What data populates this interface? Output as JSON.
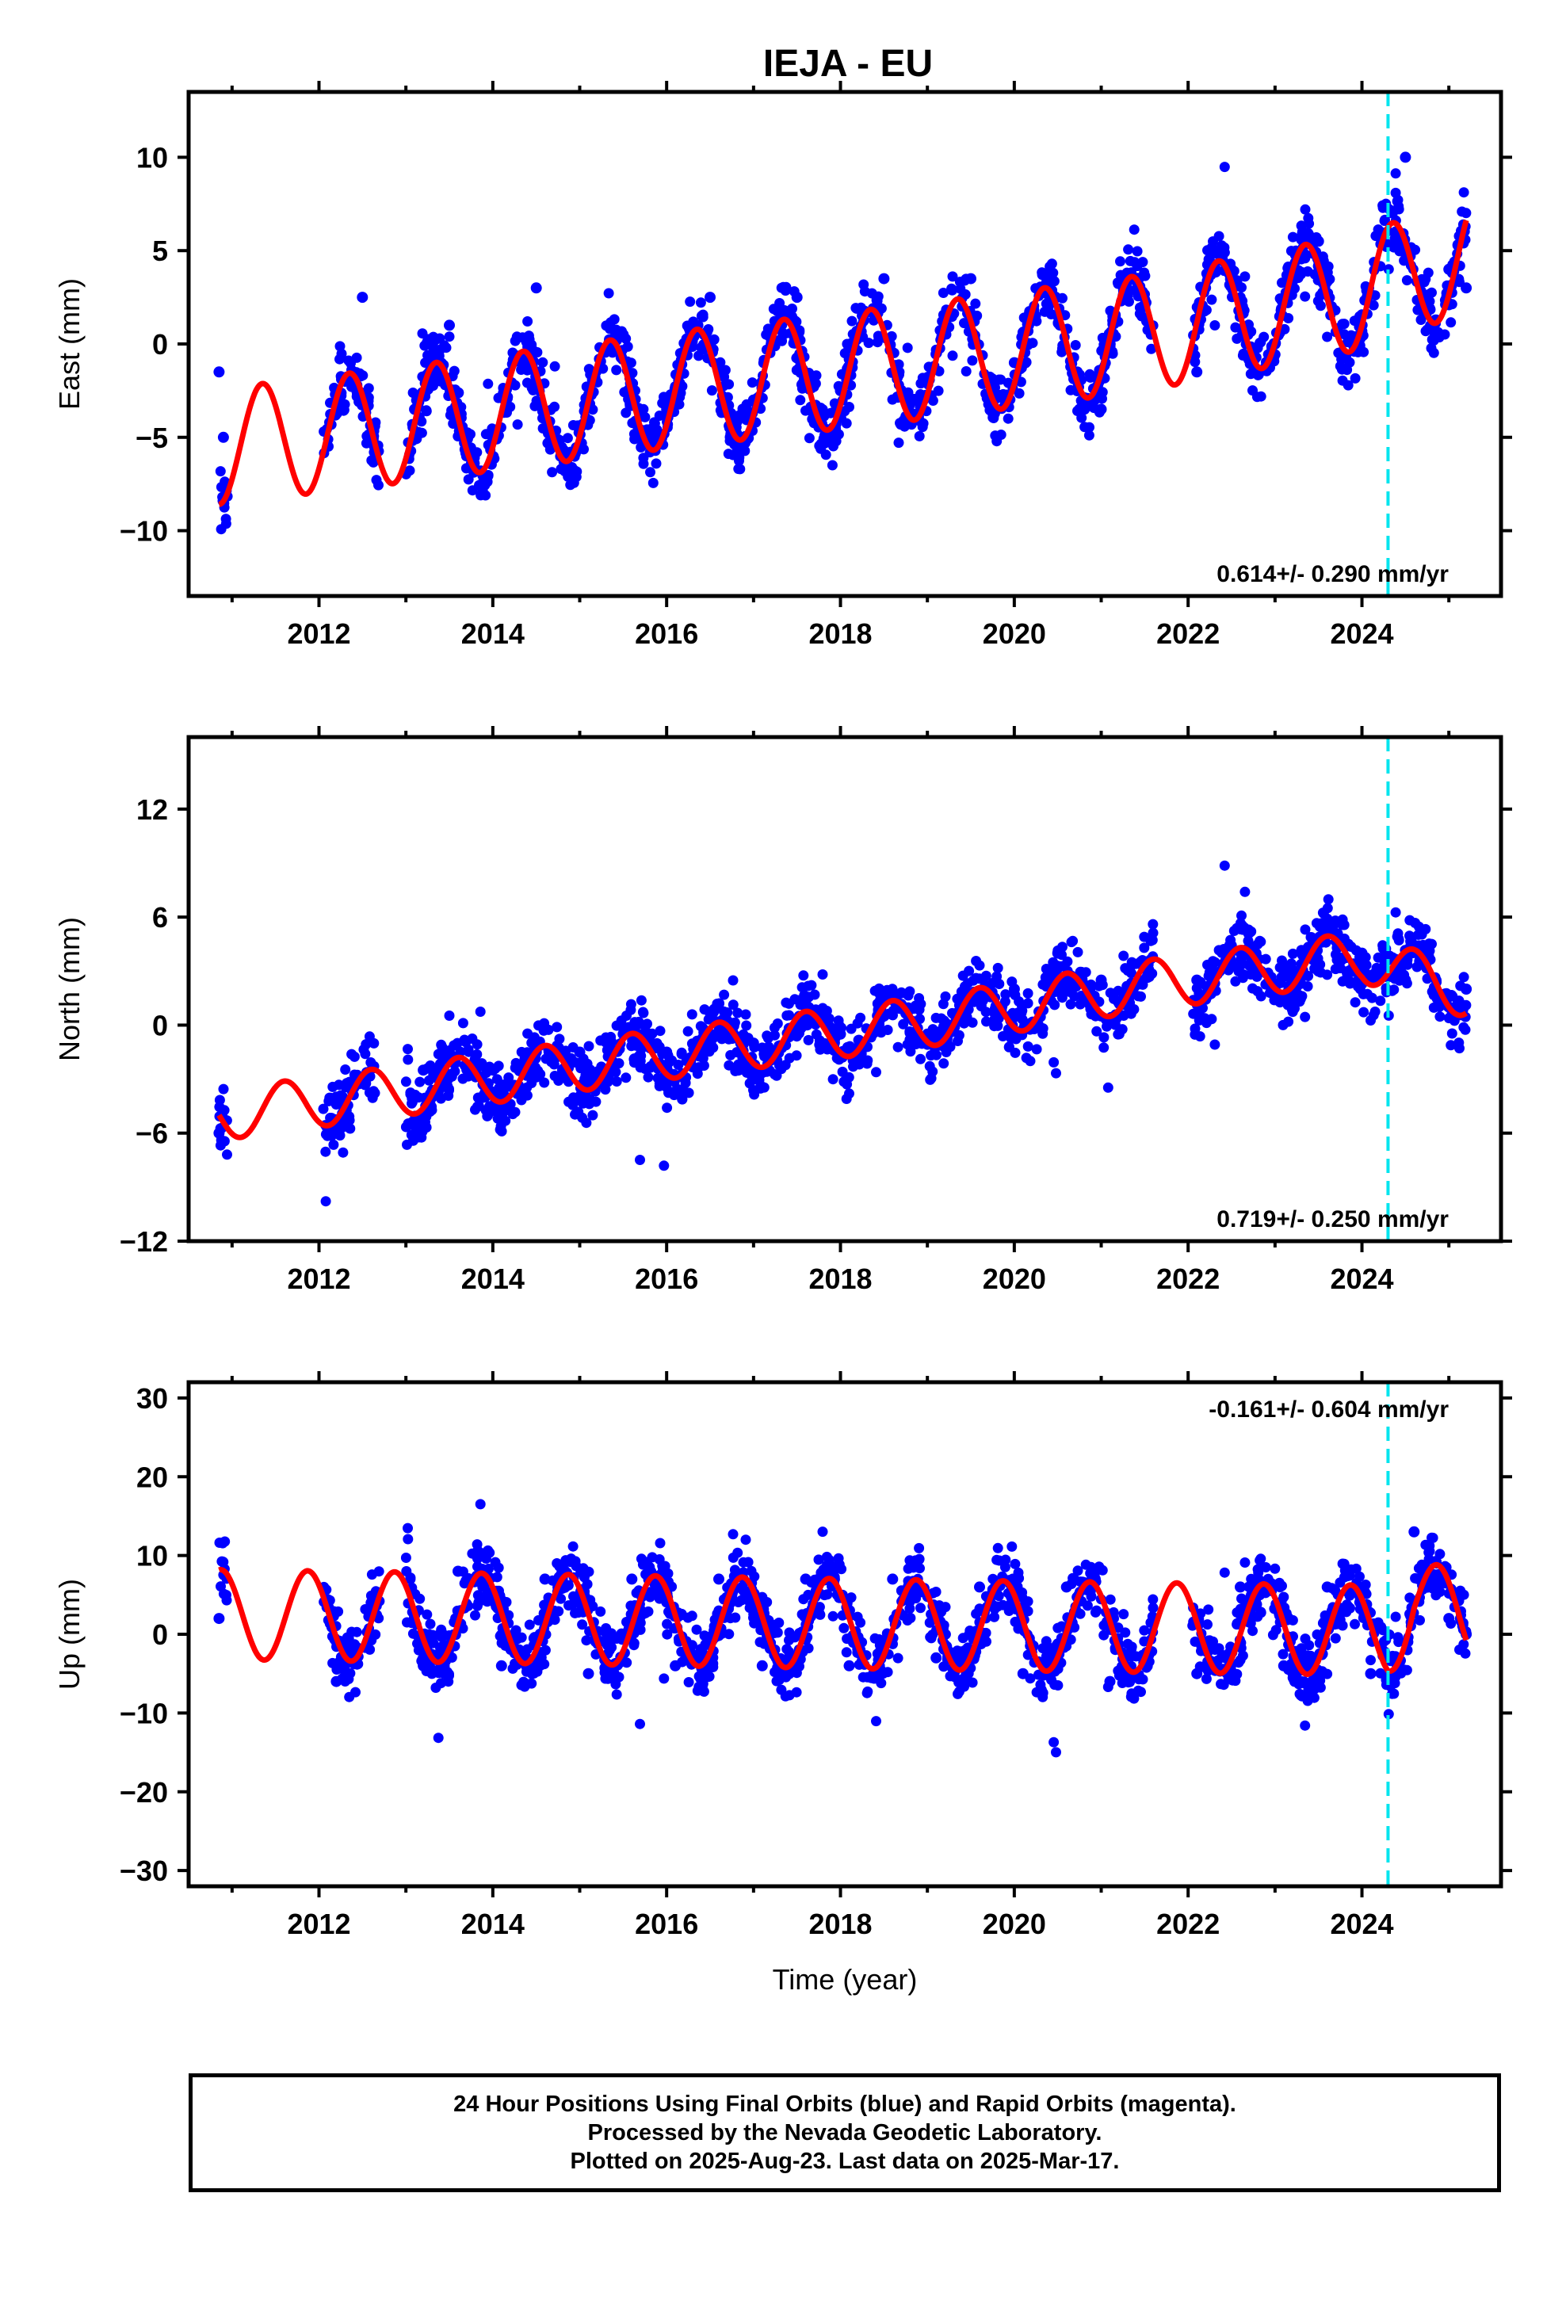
{
  "title": "IEJA - EU",
  "colors": {
    "final_orbits": "#0000ff",
    "model": "#ff0000",
    "event_line": "#00e5ee",
    "axes": "#000000"
  },
  "chart_data": [
    {
      "type": "scatter",
      "panel": "east",
      "ylabel": "East (mm)",
      "xlim": [
        2010.5,
        2025.6
      ],
      "ylim": [
        -13.5,
        13.5
      ],
      "yticks": [
        -10,
        -5,
        0,
        5,
        10
      ],
      "ytick_labels": [
        "−10",
        "−5",
        "0",
        "5",
        "10"
      ],
      "xticks": [
        2012,
        2014,
        2016,
        2018,
        2020,
        2022,
        2024
      ],
      "xtick_labels": [
        "2012",
        "2014",
        "2016",
        "2018",
        "2020",
        "2022",
        "2024"
      ],
      "rate_label": "0.614+/- 0.290 mm/yr",
      "rate_label_position": "bottom-right",
      "event_line_x": 2024.3,
      "model": {
        "trend": [
          [
            2010.85,
            -5.5
          ],
          [
            2013.0,
            -4.3
          ],
          [
            2016.0,
            -2.5
          ],
          [
            2019.0,
            -0.9
          ],
          [
            2021.5,
            0.6
          ],
          [
            2024.0,
            2.8
          ],
          [
            2025.2,
            4.8
          ]
        ],
        "annual_amplitude": 3.1,
        "annual_phase": 0.1
      },
      "series": [
        {
          "name": "Final Orbits",
          "color": "#0000ff",
          "x": [
            2010.85,
            2010.9,
            2012.3,
            2012.5,
            2013.1,
            2013.5,
            2014.0,
            2014.5,
            2015.0,
            2015.5,
            2016.0,
            2016.5,
            2017.0,
            2017.5,
            2018.0,
            2018.5,
            2019.0,
            2019.5,
            2020.0,
            2020.5,
            2021.0,
            2021.5,
            2022.1,
            2022.5,
            2023.0,
            2023.5,
            2024.0,
            2024.5,
            2025.0,
            2025.2
          ],
          "y": [
            -1.5,
            -5.0,
            -2.0,
            2.5,
            -3.5,
            1.0,
            -5.0,
            3.0,
            -4.5,
            0.5,
            -3.5,
            2.5,
            -3.0,
            2.5,
            -2.5,
            3.5,
            -2.0,
            3.5,
            -1.0,
            1.5,
            -3.5,
            2.0,
            -1.5,
            4.0,
            0.0,
            5.5,
            1.0,
            10.0,
            4.0,
            3.0
          ]
        }
      ]
    },
    {
      "type": "scatter",
      "panel": "north",
      "ylabel": "North (mm)",
      "xlim": [
        2010.5,
        2025.6
      ],
      "ylim": [
        -12,
        16
      ],
      "yticks": [
        -12,
        -6,
        0,
        6,
        12
      ],
      "ytick_labels": [
        "−12",
        "−6",
        "0",
        "6",
        "12"
      ],
      "xticks": [
        2012,
        2014,
        2016,
        2018,
        2020,
        2022,
        2024
      ],
      "xtick_labels": [
        "2012",
        "2014",
        "2016",
        "2018",
        "2020",
        "2022",
        "2024"
      ],
      "rate_label": "0.719+/- 0.250 mm/yr",
      "rate_label_position": "bottom-right",
      "event_line_x": 2024.3,
      "model": {
        "trend": [
          [
            2010.85,
            -5.0
          ],
          [
            2013.0,
            -3.6
          ],
          [
            2016.0,
            -1.6
          ],
          [
            2019.0,
            0.2
          ],
          [
            2021.5,
            2.2
          ],
          [
            2024.0,
            3.8
          ],
          [
            2025.2,
            1.8
          ]
        ],
        "annual_amplitude": 1.4,
        "annual_phase": 0.35
      },
      "series": [
        {
          "name": "Final Orbits",
          "color": "#0000ff",
          "x": [
            2010.85,
            2012.2,
            2012.5,
            2013.2,
            2013.5,
            2014.0,
            2014.5,
            2015.0,
            2015.5,
            2016.0,
            2016.5,
            2017.0,
            2017.5,
            2018.0,
            2018.5,
            2019.0,
            2019.5,
            2020.0,
            2020.5,
            2021.0,
            2022.1,
            2022.5,
            2023.0,
            2023.5,
            2024.0,
            2024.5,
            2025.0,
            2025.2
          ],
          "y": [
            -6.0,
            -4.0,
            -3.0,
            -2.5,
            -1.5,
            -2.5,
            -1.5,
            -1.5,
            -0.5,
            -1.5,
            -0.5,
            -1.0,
            0.0,
            -0.5,
            0.5,
            -0.5,
            1.5,
            2.0,
            4.0,
            2.5,
            2.5,
            3.5,
            2.0,
            3.0,
            4.0,
            2.5,
            1.0,
            2.0
          ]
        }
      ]
    },
    {
      "type": "scatter",
      "panel": "up",
      "ylabel": "Up (mm)",
      "xlabel": "Time (year)",
      "xlim": [
        2010.5,
        2025.6
      ],
      "ylim": [
        -32,
        32
      ],
      "yticks": [
        -30,
        -20,
        -10,
        0,
        10,
        20,
        30
      ],
      "ytick_labels": [
        "−30",
        "−20",
        "−10",
        "0",
        "10",
        "20",
        "30"
      ],
      "xticks": [
        2012,
        2014,
        2016,
        2018,
        2020,
        2022,
        2024
      ],
      "xtick_labels": [
        "2012",
        "2014",
        "2016",
        "2018",
        "2020",
        "2022",
        "2024"
      ],
      "rate_label": "-0.161+/- 0.604 mm/yr",
      "rate_label_position": "top-right",
      "event_line_x": 2024.3,
      "model": {
        "trend": [
          [
            2010.85,
            2.5
          ],
          [
            2013.0,
            2.2
          ],
          [
            2016.0,
            1.7
          ],
          [
            2019.0,
            1.2
          ],
          [
            2022.0,
            0.8
          ],
          [
            2024.3,
            0.5
          ],
          [
            2024.6,
            4.0
          ],
          [
            2025.2,
            2.0
          ]
        ],
        "annual_amplitude": 5.7,
        "annual_phase": 0.62
      },
      "series": [
        {
          "name": "Final Orbits",
          "color": "#0000ff",
          "x": [
            2010.85,
            2012.2,
            2012.6,
            2013.2,
            2013.6,
            2014.1,
            2014.6,
            2015.1,
            2015.6,
            2016.1,
            2016.6,
            2017.1,
            2017.6,
            2018.1,
            2018.6,
            2019.1,
            2019.6,
            2020.1,
            2020.6,
            2021.1,
            2022.1,
            2022.6,
            2023.1,
            2023.6,
            2024.1,
            2024.6,
            2025.0,
            2025.2
          ],
          "y": [
            2.0,
            -6.0,
            4.0,
            -4.0,
            8.0,
            -4.0,
            7.0,
            -5.0,
            7.0,
            -4.0,
            7.0,
            -4.0,
            7.0,
            -4.0,
            7.0,
            -3.0,
            6.0,
            -5.0,
            6.0,
            -6.0,
            -5.0,
            6.0,
            -4.0,
            6.0,
            -5.0,
            13.0,
            2.0,
            0.0
          ]
        }
      ]
    }
  ],
  "caption": {
    "lines": [
      "24 Hour Positions Using Final Orbits (blue) and Rapid Orbits (magenta).",
      "Processed by the Nevada Geodetic Laboratory.",
      "Plotted on 2025-Aug-23. Last data on 2025-Mar-17."
    ]
  }
}
